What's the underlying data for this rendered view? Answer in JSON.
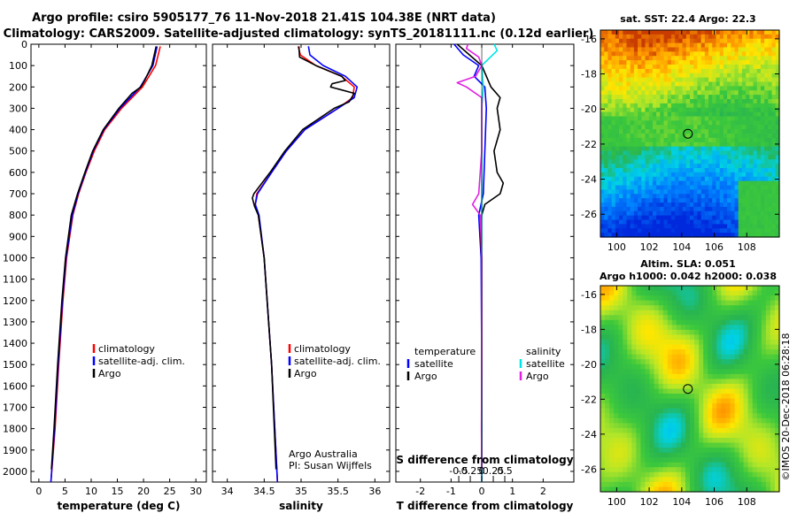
{
  "header": {
    "line1": "Argo profile: csiro 5905177_76 11-Nov-2018 21.41S 104.38E (NRT data)",
    "line2": "Climatology: CARS2009. Satellite-adjusted climatology: synTS_20181111.nc (0.12d earlier)"
  },
  "depth_ticks": [
    0,
    100,
    200,
    300,
    400,
    500,
    600,
    700,
    800,
    900,
    1000,
    1100,
    1200,
    1300,
    1400,
    1500,
    1600,
    1700,
    1800,
    1900,
    2000
  ],
  "colors": {
    "climatology": "#ff0000",
    "satellite": "#0000ff",
    "argo": "#000000",
    "sat_salinity": "#00e5e5",
    "argo_salinity": "#e020e0"
  },
  "chart_data": [
    {
      "type": "line",
      "name": "temperature",
      "xlabel": "temperature (deg C)",
      "xlim": [
        -1.5,
        32
      ],
      "ylim": [
        2050,
        0
      ],
      "xticks": [
        0,
        5,
        10,
        15,
        20,
        25,
        30
      ],
      "legend": [
        "climatology",
        "satellite-adj. clim.",
        "Argo"
      ],
      "series": [
        {
          "name": "climatology",
          "color": "#ff0000",
          "depth": [
            10,
            100,
            200,
            300,
            400,
            500,
            600,
            700,
            800,
            1000,
            1200,
            1500,
            1800,
            2050
          ],
          "values": [
            23.2,
            22.3,
            19.8,
            15.8,
            12.6,
            10.6,
            9.0,
            7.6,
            6.5,
            5.3,
            4.6,
            3.8,
            3.1,
            2.3
          ]
        },
        {
          "name": "satellite-adj. clim.",
          "color": "#0000ff",
          "depth": [
            10,
            100,
            200,
            300,
            400,
            500,
            600,
            700,
            800,
            1000,
            1200,
            1500,
            1800,
            2050
          ],
          "values": [
            22.6,
            21.8,
            19.4,
            15.5,
            12.4,
            10.4,
            8.9,
            7.5,
            6.4,
            5.2,
            4.5,
            3.7,
            3.0,
            2.3
          ]
        },
        {
          "name": "Argo",
          "color": "#000000",
          "depth": [
            10,
            100,
            170,
            200,
            230,
            300,
            400,
            500,
            600,
            700,
            800,
            1000,
            1200,
            1500,
            1800,
            1990
          ],
          "values": [
            22.4,
            21.6,
            20.2,
            19.5,
            17.8,
            15.3,
            12.3,
            10.3,
            8.8,
            7.4,
            6.2,
            5.1,
            4.4,
            3.6,
            2.9,
            2.4
          ]
        }
      ]
    },
    {
      "type": "line",
      "name": "salinity",
      "xlabel": "salinity",
      "xlim": [
        33.8,
        36.2
      ],
      "ylim": [
        2050,
        0
      ],
      "xticks": [
        34,
        34.5,
        35,
        35.5,
        36
      ],
      "legend": [
        "climatology",
        "satellite-adj. clim.",
        "Argo"
      ],
      "annotation": [
        "Argo Australia",
        "PI: Susan Wijffels"
      ],
      "series": [
        {
          "name": "climatology",
          "color": "#ff0000",
          "depth": [
            10,
            50,
            100,
            150,
            200,
            250,
            300,
            400,
            500,
            600,
            700,
            750,
            800,
            1000,
            1500,
            2050
          ],
          "values": [
            34.96,
            34.99,
            35.2,
            35.55,
            35.72,
            35.7,
            35.5,
            35.05,
            34.8,
            34.6,
            34.4,
            34.38,
            34.42,
            34.5,
            34.6,
            34.68
          ]
        },
        {
          "name": "satellite-adj. clim.",
          "color": "#0000ff",
          "depth": [
            10,
            50,
            100,
            150,
            200,
            250,
            300,
            400,
            500,
            600,
            700,
            750,
            800,
            1000,
            1500,
            2050
          ],
          "values": [
            35.1,
            35.12,
            35.3,
            35.6,
            35.76,
            35.72,
            35.5,
            35.05,
            34.8,
            34.6,
            34.41,
            34.38,
            34.43,
            34.5,
            34.6,
            34.68
          ]
        },
        {
          "name": "Argo",
          "color": "#000000",
          "depth": [
            10,
            60,
            100,
            150,
            170,
            185,
            200,
            230,
            270,
            300,
            400,
            500,
            600,
            700,
            720,
            760,
            800,
            1000,
            1500,
            1990
          ],
          "values": [
            34.97,
            34.98,
            35.2,
            35.55,
            35.6,
            35.42,
            35.4,
            35.72,
            35.65,
            35.45,
            35.02,
            34.78,
            34.58,
            34.36,
            34.34,
            34.37,
            34.42,
            34.5,
            34.6,
            34.66
          ]
        }
      ]
    },
    {
      "type": "line",
      "name": "difference",
      "xlabel": "T difference from climatology",
      "xlabel2": "S difference from climatology",
      "xlim": [
        -2.8,
        3.0
      ],
      "ylim": [
        2050,
        0
      ],
      "xticks": [
        -2,
        -1,
        0,
        1,
        2
      ],
      "xticklabels": [
        "-2",
        "-1",
        "0",
        "1",
        "2"
      ],
      "s_ticks": [
        -0.5,
        -0.25,
        0,
        0.25,
        0.5
      ],
      "s_ticklabels": [
        "-0.5",
        "-0.25",
        "0",
        "0.25",
        "0.5"
      ],
      "legend": [
        "temperature",
        "satellite",
        "Argo",
        "salinity",
        "satellite",
        "Argo"
      ],
      "series": [
        {
          "name": "temperature satellite",
          "color": "#0000ff",
          "depth": [
            0,
            50,
            100,
            150,
            200,
            300,
            500,
            700,
            800,
            1000,
            1500,
            2050
          ],
          "values": [
            -0.9,
            -0.6,
            -0.1,
            -0.25,
            0.1,
            0.15,
            0.1,
            0.05,
            -0.1,
            -0.02,
            0.0,
            0.0
          ]
        },
        {
          "name": "temperature Argo",
          "color": "#000000",
          "depth": [
            0,
            50,
            100,
            200,
            250,
            300,
            400,
            500,
            600,
            650,
            700,
            750,
            800,
            900,
            1000,
            1500,
            2000
          ],
          "values": [
            -0.8,
            -0.4,
            0.0,
            0.3,
            0.6,
            0.5,
            0.6,
            0.4,
            0.5,
            0.7,
            0.6,
            0.1,
            0.0,
            -0.05,
            0.0,
            0.0,
            0.0
          ]
        },
        {
          "name": "salinity satellite",
          "color": "#00e5e5",
          "depth": [
            0,
            30,
            100,
            200,
            300,
            500,
            800,
            1000,
            1500,
            2050
          ],
          "values": [
            0.4,
            0.5,
            0.0,
            0.05,
            0.0,
            0.0,
            0.0,
            0.0,
            0.0,
            0.0
          ]
        },
        {
          "name": "salinity Argo",
          "color": "#e020e0",
          "depth": [
            0,
            20,
            60,
            100,
            150,
            180,
            200,
            250,
            300,
            500,
            700,
            750,
            800,
            1000,
            1500,
            1800,
            1990
          ],
          "values": [
            -0.45,
            -0.5,
            -0.1,
            0.0,
            -0.2,
            -0.8,
            -0.5,
            0.0,
            0.0,
            0.0,
            -0.1,
            -0.3,
            -0.05,
            0.0,
            0.0,
            -0.01,
            0.0
          ]
        }
      ]
    },
    {
      "type": "heatmap",
      "name": "sst map",
      "title": "sat. SST: 22.4 Argo: 22.3",
      "xticks": [
        100,
        102,
        104,
        106,
        108
      ],
      "yticks": [
        -16,
        -18,
        -20,
        -22,
        -24,
        -26
      ],
      "xlim": [
        99,
        110
      ],
      "ylim": [
        -27.3,
        -15.5
      ],
      "marker": [
        104.38,
        -21.41
      ]
    },
    {
      "type": "heatmap",
      "name": "sla map",
      "title": "Altim. SLA: 0.051",
      "subtitle": "Argo h1000: 0.042 h2000: 0.038",
      "xticks": [
        100,
        102,
        104,
        106,
        108
      ],
      "yticks": [
        -16,
        -18,
        -20,
        -22,
        -24,
        -26
      ],
      "xlim": [
        99,
        110
      ],
      "ylim": [
        -27.3,
        -15.5
      ],
      "marker": [
        104.38,
        -21.41
      ]
    }
  ],
  "credit": "©IMOS 20-Dec-2018 06:28:18"
}
